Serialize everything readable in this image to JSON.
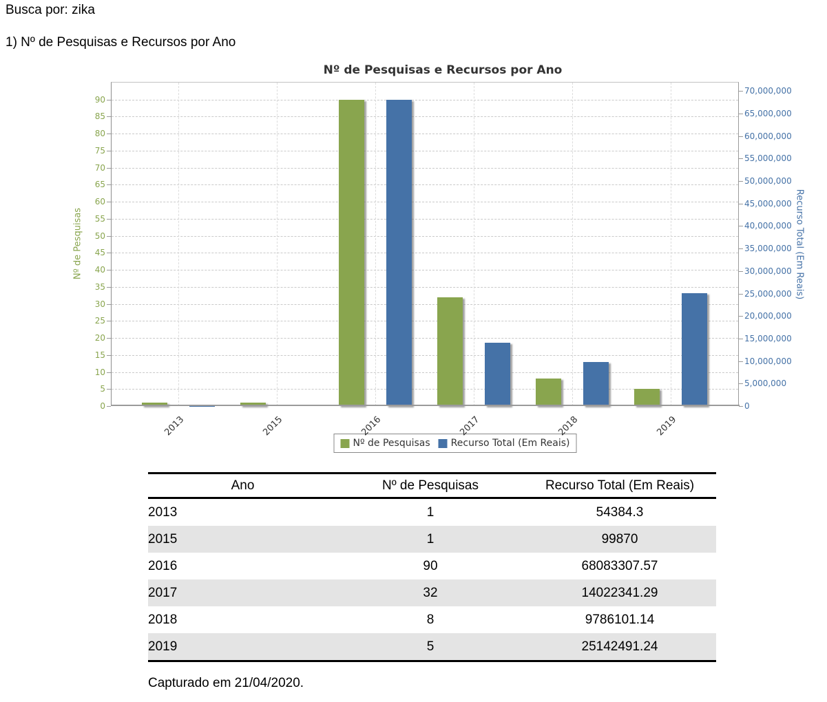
{
  "page": {
    "search_text": "Busca por: zika",
    "section_heading": "1) Nº de Pesquisas e Recursos por Ano",
    "capture_note": "Capturado em 21/04/2020."
  },
  "chart_data": {
    "type": "bar",
    "title": "Nº de Pesquisas e Recursos por Ano",
    "categories": [
      "2013",
      "2015",
      "2016",
      "2017",
      "2018",
      "2019"
    ],
    "series": [
      {
        "name": "Nº de Pesquisas",
        "axis": "left",
        "color": "#89A54E",
        "values": [
          1,
          1,
          90,
          32,
          8,
          5
        ]
      },
      {
        "name": "Recurso Total (Em Reais)",
        "axis": "right",
        "color": "#4572A7",
        "values": [
          54384.3,
          99870,
          68083307.57,
          14022341.29,
          9786101.14,
          25142491.24
        ]
      }
    ],
    "left_axis": {
      "title": "Nº de Pesquisas",
      "color": "#89A54E",
      "min": 0,
      "max": 95,
      "tick_interval": 5,
      "last_tick": 90
    },
    "right_axis": {
      "title": "Recurso Total (Em Reais)",
      "color": "#4572A7",
      "min": 0,
      "max": 71865713,
      "tick_interval": 5000000,
      "last_tick": 70000000
    },
    "grid": "dashed",
    "legend_position": "bottom",
    "bar_shadow": true
  },
  "table": {
    "headers": [
      "Ano",
      "Nº de Pesquisas",
      "Recurso Total (Em Reais)"
    ],
    "rows": [
      [
        "2013",
        "1",
        "54384.3"
      ],
      [
        "2015",
        "1",
        "99870"
      ],
      [
        "2016",
        "90",
        "68083307.57"
      ],
      [
        "2017",
        "32",
        "14022341.29"
      ],
      [
        "2018",
        "8",
        "9786101.14"
      ],
      [
        "2019",
        "5",
        "25142491.24"
      ]
    ],
    "zebra_color": "#e4e4e4"
  }
}
